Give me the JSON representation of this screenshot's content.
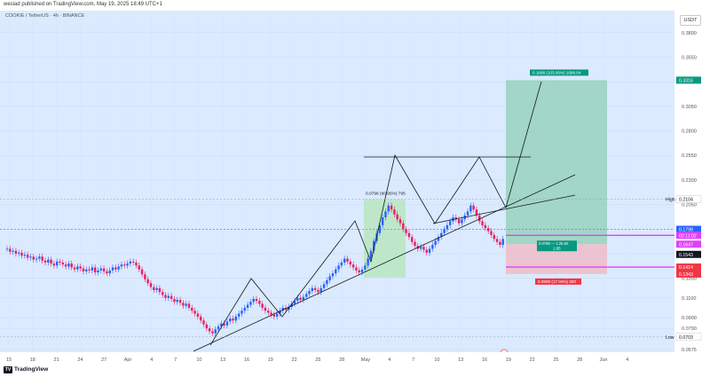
{
  "header": {
    "published": "wesiad published on TradingView.com, May 19, 2025 18:49 UTC+1"
  },
  "chart_data": {
    "type": "candlestick",
    "symbol_line": "COOKIE / TetherUS · 4h · BINANCE",
    "currency": "USDT",
    "ylim": [
      0.0575,
      0.3825
    ],
    "y_ticks": [
      "0.3800",
      "0.3550",
      "0.3300",
      "0.3050",
      "0.2800",
      "0.2550",
      "0.2300",
      "0.2050",
      "0.1800",
      "0.1550",
      "0.1300",
      "0.1100",
      "0.0900",
      "0.0790",
      "0.0575"
    ],
    "x_ticks": [
      "15",
      "18",
      "21",
      "24",
      "27",
      "Apr",
      "4",
      "7",
      "10",
      "13",
      "16",
      "19",
      "22",
      "25",
      "28",
      "May",
      "4",
      "7",
      "10",
      "13",
      "16",
      "19",
      "22",
      "25",
      "28",
      "Jun",
      "4"
    ],
    "price_labels": [
      {
        "text": "High",
        "value": 0.2104,
        "color": "#ffffff",
        "textColor": "#131722",
        "label": "0.2104"
      },
      {
        "text": "",
        "value": 0.3316,
        "color": "#089981",
        "textColor": "#ffffff",
        "label": "0.3316"
      },
      {
        "text": "",
        "value": 0.1798,
        "color": "#2962ff",
        "textColor": "#ffffff",
        "label": "0.1798"
      },
      {
        "text": "",
        "value": 0.1737,
        "color": "#e040fb",
        "textColor": "#ffffff",
        "label": "02:11:02"
      },
      {
        "text": "",
        "value": 0.1647,
        "color": "#e040fb",
        "textColor": "#ffffff",
        "label": "0.1647"
      },
      {
        "text": "",
        "value": 0.1543,
        "color": "#131722",
        "textColor": "#ffffff",
        "label": "0.1543"
      },
      {
        "text": "",
        "value": 0.1414,
        "color": "#f23645",
        "textColor": "#ffffff",
        "label": "0.1414"
      },
      {
        "text": "",
        "value": 0.1343,
        "color": "#f23645",
        "textColor": "#ffffff",
        "label": "0.1343"
      },
      {
        "text": "Low",
        "value": 0.0703,
        "color": "#ffffff",
        "textColor": "#131722",
        "label": "0.0703"
      }
    ],
    "annotations": {
      "measure": "0.0796 (60.95%) 795",
      "target": "0.1698 (103.06%) 1698.64",
      "stop": "0.0800 (17.04%) 300",
      "position_mid": "0.0796 — 1:25.50",
      "rr": "1.85",
      "event_marker": "E"
    },
    "candles_close": [
      0.16,
      0.157,
      0.158,
      0.155,
      0.156,
      0.153,
      0.154,
      0.151,
      0.152,
      0.149,
      0.15,
      0.152,
      0.148,
      0.146,
      0.149,
      0.145,
      0.143,
      0.147,
      0.146,
      0.144,
      0.142,
      0.145,
      0.141,
      0.139,
      0.142,
      0.14,
      0.137,
      0.139,
      0.138,
      0.141,
      0.136,
      0.138,
      0.14,
      0.137,
      0.135,
      0.138,
      0.141,
      0.139,
      0.142,
      0.144,
      0.143,
      0.145,
      0.147,
      0.146,
      0.143,
      0.139,
      0.134,
      0.129,
      0.125,
      0.121,
      0.118,
      0.12,
      0.116,
      0.113,
      0.11,
      0.112,
      0.109,
      0.106,
      0.108,
      0.105,
      0.102,
      0.104,
      0.1,
      0.097,
      0.094,
      0.091,
      0.087,
      0.083,
      0.079,
      0.076,
      0.074,
      0.078,
      0.081,
      0.084,
      0.082,
      0.086,
      0.089,
      0.087,
      0.091,
      0.094,
      0.097,
      0.1,
      0.103,
      0.106,
      0.109,
      0.107,
      0.104,
      0.1,
      0.097,
      0.095,
      0.093,
      0.091,
      0.094,
      0.097,
      0.1,
      0.098,
      0.101,
      0.104,
      0.107,
      0.11,
      0.108,
      0.111,
      0.114,
      0.117,
      0.12,
      0.118,
      0.116,
      0.12,
      0.124,
      0.128,
      0.132,
      0.135,
      0.139,
      0.143,
      0.146,
      0.15,
      0.147,
      0.144,
      0.141,
      0.138,
      0.136,
      0.139,
      0.143,
      0.15,
      0.158,
      0.168,
      0.176,
      0.184,
      0.192,
      0.198,
      0.204,
      0.2,
      0.195,
      0.19,
      0.186,
      0.18,
      0.176,
      0.172,
      0.167,
      0.163,
      0.16,
      0.162,
      0.159,
      0.156,
      0.16,
      0.164,
      0.168,
      0.172,
      0.176,
      0.18,
      0.184,
      0.188,
      0.192,
      0.19,
      0.186,
      0.19,
      0.194,
      0.198,
      0.204,
      0.2,
      0.194,
      0.188,
      0.184,
      0.181,
      0.178,
      0.174,
      0.17,
      0.167,
      0.164,
      0.17
    ]
  }
}
